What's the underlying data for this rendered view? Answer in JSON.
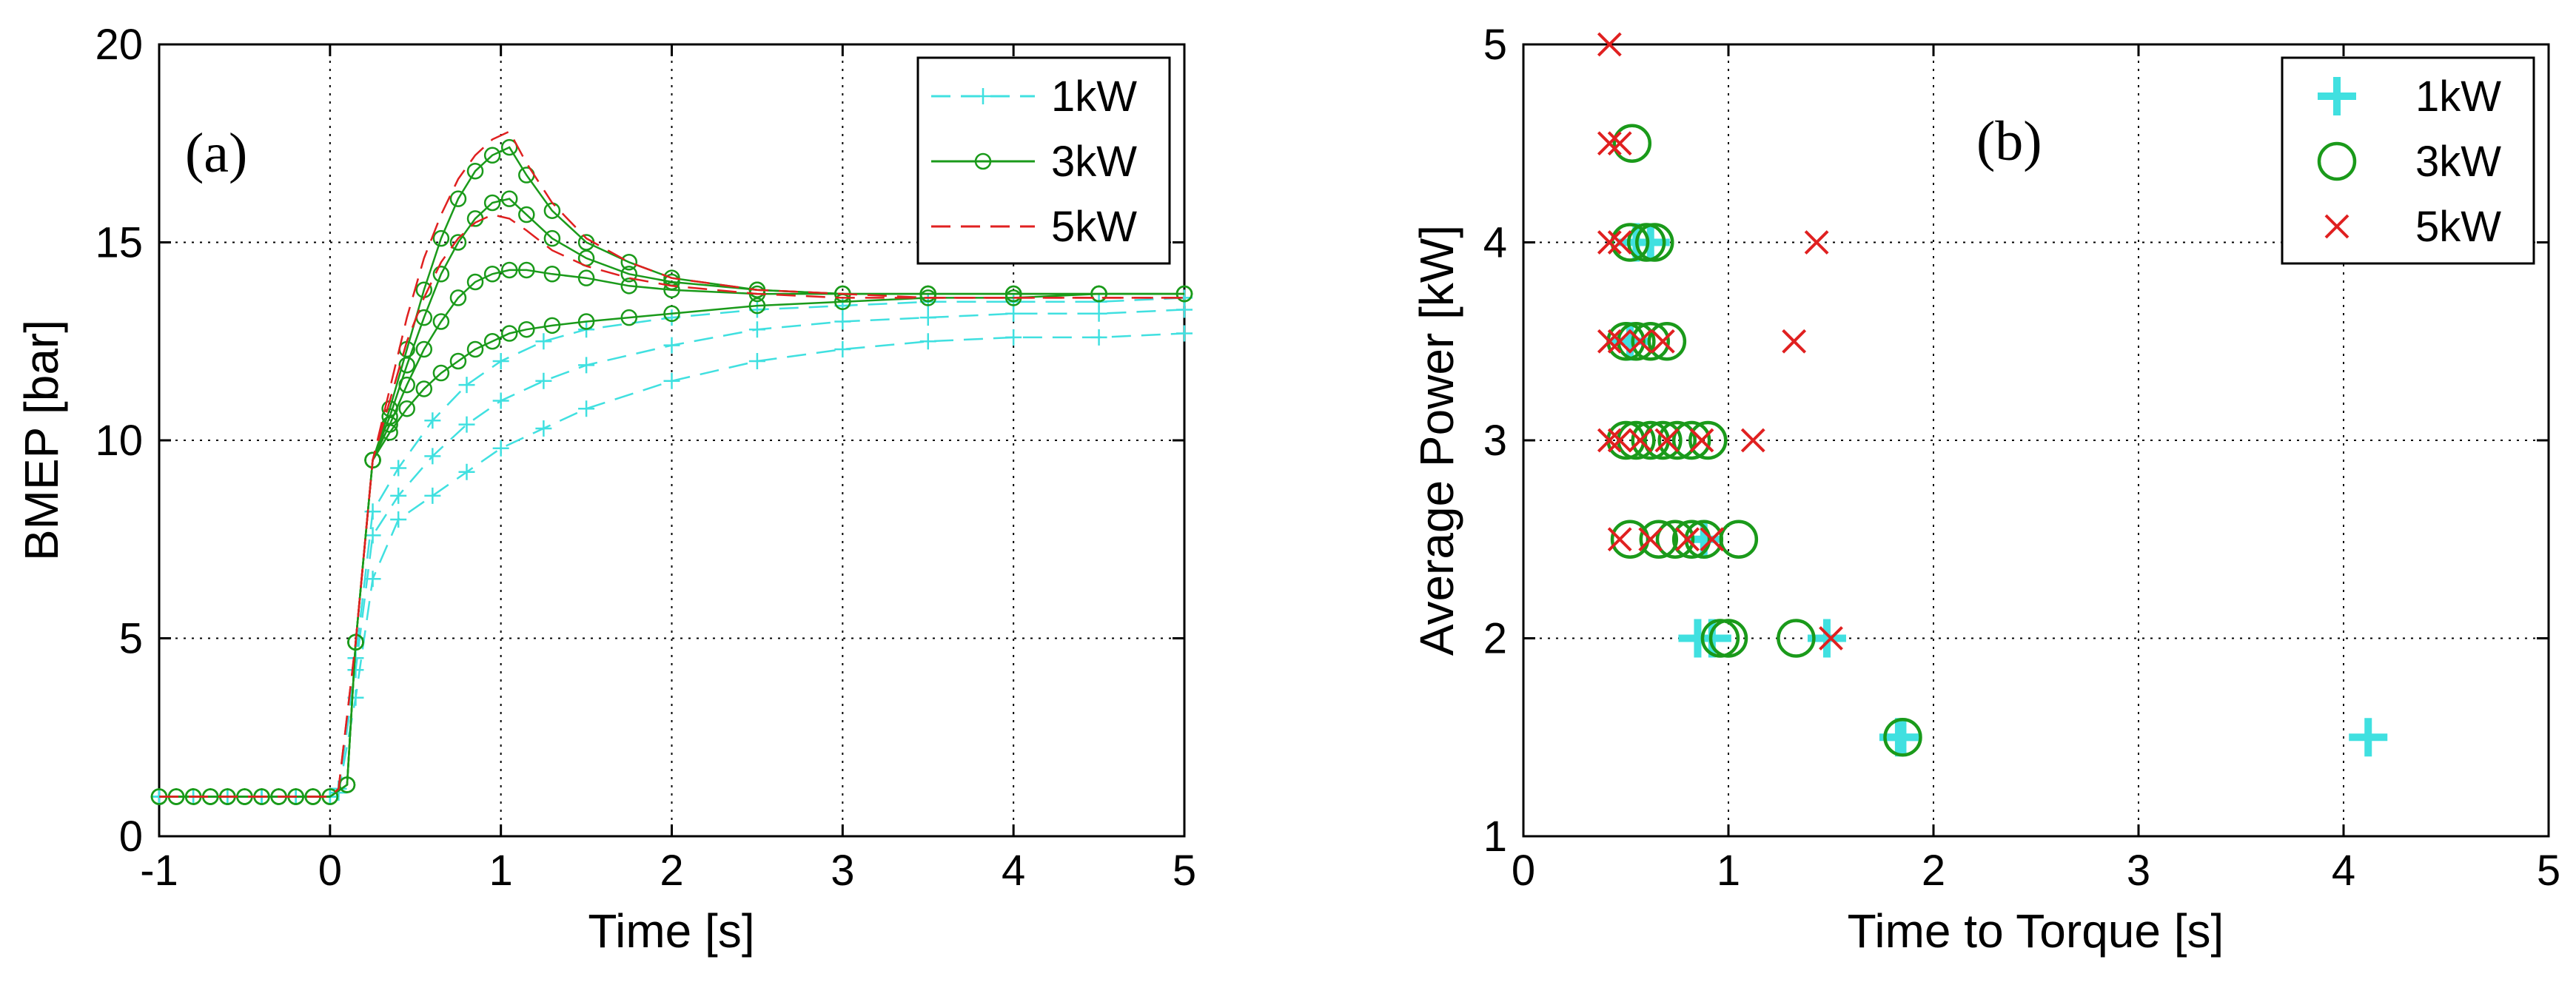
{
  "chart_data": [
    {
      "type": "line",
      "panel_label": "(a)",
      "xlabel": "Time [s]",
      "ylabel": "BMEP [bar]",
      "xlim": [
        -1,
        5
      ],
      "ylim": [
        0,
        20
      ],
      "xticks": [
        -1,
        0,
        1,
        2,
        3,
        4,
        5
      ],
      "yticks": [
        0,
        5,
        10,
        15,
        20
      ],
      "grid": true,
      "legend_position": "top-right",
      "series": [
        {
          "name": "1kW",
          "color": "#40e0e0",
          "marker": "plus",
          "dash": "dashed",
          "x": [
            -1,
            -0.8,
            -0.6,
            -0.4,
            -0.2,
            0,
            0.05,
            0.15,
            0.25,
            0.4,
            0.6,
            0.8,
            1.0,
            1.25,
            1.5,
            2.0,
            2.5,
            3.0,
            3.5,
            4.0,
            4.5,
            5.0
          ],
          "lines": [
            [
              1,
              1,
              1,
              1,
              1,
              1,
              1.1,
              3.5,
              6.5,
              8.0,
              8.6,
              9.2,
              9.8,
              10.3,
              10.8,
              11.5,
              12.0,
              12.3,
              12.5,
              12.6,
              12.6,
              12.7
            ],
            [
              1,
              1,
              1,
              1,
              1,
              1,
              1.2,
              4.2,
              7.6,
              8.6,
              9.6,
              10.4,
              11.0,
              11.5,
              11.9,
              12.4,
              12.8,
              13.0,
              13.1,
              13.2,
              13.2,
              13.3
            ],
            [
              1,
              1,
              1,
              1,
              1,
              1,
              1.2,
              4.5,
              8.2,
              9.3,
              10.5,
              11.4,
              12.0,
              12.5,
              12.8,
              13.1,
              13.3,
              13.4,
              13.5,
              13.5,
              13.5,
              13.6
            ]
          ]
        },
        {
          "name": "3kW",
          "color": "#1a9a1a",
          "marker": "circle",
          "dash": "solid",
          "x": [
            -1,
            -0.9,
            -0.8,
            -0.7,
            -0.6,
            -0.5,
            -0.4,
            -0.3,
            -0.2,
            -0.1,
            0,
            0.1,
            0.15,
            0.25,
            0.35,
            0.45,
            0.55,
            0.65,
            0.75,
            0.85,
            0.95,
            1.05,
            1.15,
            1.3,
            1.5,
            1.75,
            2.0,
            2.5,
            3.0,
            3.5,
            4.0,
            4.5,
            5.0
          ],
          "lines": [
            [
              1,
              1,
              1,
              1,
              1,
              1,
              1,
              1,
              1,
              1,
              1,
              1.3,
              4.9,
              9.5,
              10.2,
              10.8,
              11.3,
              11.7,
              12.0,
              12.3,
              12.5,
              12.7,
              12.8,
              12.9,
              13.0,
              13.1,
              13.2,
              13.4,
              13.5,
              13.6,
              13.6,
              13.7,
              13.7
            ],
            [
              1,
              1,
              1,
              1,
              1,
              1,
              1,
              1,
              1,
              1,
              1,
              1.3,
              4.9,
              9.5,
              10.4,
              11.4,
              12.3,
              13.0,
              13.6,
              14.0,
              14.2,
              14.3,
              14.3,
              14.2,
              14.1,
              13.9,
              13.8,
              13.7,
              13.7,
              13.7,
              13.7,
              13.7,
              13.7
            ],
            [
              1,
              1,
              1,
              1,
              1,
              1,
              1,
              1,
              1,
              1,
              1,
              1.3,
              4.9,
              9.5,
              10.6,
              11.9,
              13.1,
              14.2,
              15.0,
              15.6,
              16.0,
              16.1,
              15.7,
              15.1,
              14.6,
              14.2,
              14.0,
              13.8,
              13.7,
              13.7,
              13.7,
              13.7,
              13.7
            ],
            [
              1,
              1,
              1,
              1,
              1,
              1,
              1,
              1,
              1,
              1,
              1,
              1.3,
              4.9,
              9.5,
              10.8,
              12.3,
              13.8,
              15.1,
              16.1,
              16.8,
              17.2,
              17.4,
              16.7,
              15.8,
              15.0,
              14.5,
              14.1,
              13.8,
              13.7,
              13.7,
              13.7,
              13.7,
              13.7
            ]
          ]
        },
        {
          "name": "5kW",
          "color": "#e02020",
          "marker": "none",
          "dash": "dashed",
          "x": [
            -1,
            0,
            0.05,
            0.15,
            0.25,
            0.35,
            0.45,
            0.55,
            0.65,
            0.75,
            0.85,
            0.95,
            1.05,
            1.15,
            1.3,
            1.5,
            1.75,
            2.0,
            2.5,
            3.0,
            3.5,
            4.0,
            4.5,
            5.0
          ],
          "lines": [
            [
              1,
              1,
              1.2,
              4.9,
              9.5,
              11.0,
              12.5,
              13.6,
              14.5,
              15.1,
              15.5,
              15.7,
              15.6,
              15.3,
              14.8,
              14.4,
              14.1,
              13.9,
              13.7,
              13.6,
              13.6,
              13.6,
              13.6,
              13.6
            ],
            [
              1,
              1,
              1.2,
              4.9,
              9.5,
              11.3,
              13.1,
              14.6,
              15.7,
              16.6,
              17.2,
              17.6,
              17.8,
              17.0,
              16.0,
              15.1,
              14.5,
              14.1,
              13.8,
              13.7,
              13.6,
              13.6,
              13.6,
              13.6
            ]
          ]
        }
      ]
    },
    {
      "type": "scatter",
      "panel_label": "(b)",
      "xlabel": "Time to Torque [s]",
      "ylabel": "Average Power [kW]",
      "xlim": [
        0,
        5
      ],
      "ylim": [
        1,
        5
      ],
      "xticks": [
        0,
        1,
        2,
        3,
        4,
        5
      ],
      "yticks": [
        1,
        2,
        3,
        4,
        5
      ],
      "grid": true,
      "legend_position": "top-right",
      "series": [
        {
          "name": "1kW",
          "color": "#40e0e0",
          "marker": "plus",
          "points": [
            [
              4.12,
              1.5
            ],
            [
              1.85,
              1.5
            ],
            [
              1.83,
              1.5
            ],
            [
              0.85,
              2.0
            ],
            [
              0.92,
              2.0
            ],
            [
              1.48,
              2.0
            ],
            [
              0.55,
              4.0
            ],
            [
              0.62,
              4.0
            ],
            [
              0.88,
              2.5
            ],
            [
              0.52,
              3.5
            ]
          ]
        },
        {
          "name": "3kW",
          "color": "#1a9a1a",
          "marker": "circle",
          "points": [
            [
              0.53,
              4.5
            ],
            [
              0.52,
              4.0
            ],
            [
              0.6,
              4.0
            ],
            [
              0.64,
              4.0
            ],
            [
              0.5,
              3.5
            ],
            [
              0.55,
              3.5
            ],
            [
              0.62,
              3.5
            ],
            [
              0.7,
              3.5
            ],
            [
              0.5,
              3.0
            ],
            [
              0.55,
              3.0
            ],
            [
              0.62,
              3.0
            ],
            [
              0.68,
              3.0
            ],
            [
              0.75,
              3.0
            ],
            [
              0.82,
              3.0
            ],
            [
              0.9,
              3.0
            ],
            [
              0.52,
              2.5
            ],
            [
              0.66,
              2.5
            ],
            [
              0.74,
              2.5
            ],
            [
              0.82,
              2.5
            ],
            [
              0.88,
              2.5
            ],
            [
              1.05,
              2.5
            ],
            [
              0.96,
              2.0
            ],
            [
              1.0,
              2.0
            ],
            [
              1.33,
              2.0
            ],
            [
              1.85,
              1.5
            ]
          ]
        },
        {
          "name": "5kW",
          "color": "#e02020",
          "marker": "x",
          "points": [
            [
              0.42,
              5.0
            ],
            [
              0.42,
              4.5
            ],
            [
              0.47,
              4.5
            ],
            [
              0.42,
              4.0
            ],
            [
              0.47,
              4.0
            ],
            [
              1.43,
              4.0
            ],
            [
              0.42,
              3.5
            ],
            [
              0.47,
              3.5
            ],
            [
              0.57,
              3.5
            ],
            [
              0.68,
              3.5
            ],
            [
              1.32,
              3.5
            ],
            [
              0.42,
              3.0
            ],
            [
              0.47,
              3.0
            ],
            [
              0.57,
              3.0
            ],
            [
              0.7,
              3.0
            ],
            [
              0.87,
              3.0
            ],
            [
              1.12,
              3.0
            ],
            [
              0.47,
              2.5
            ],
            [
              0.62,
              2.5
            ],
            [
              0.8,
              2.5
            ],
            [
              0.92,
              2.5
            ],
            [
              1.5,
              2.0
            ]
          ]
        }
      ]
    }
  ]
}
